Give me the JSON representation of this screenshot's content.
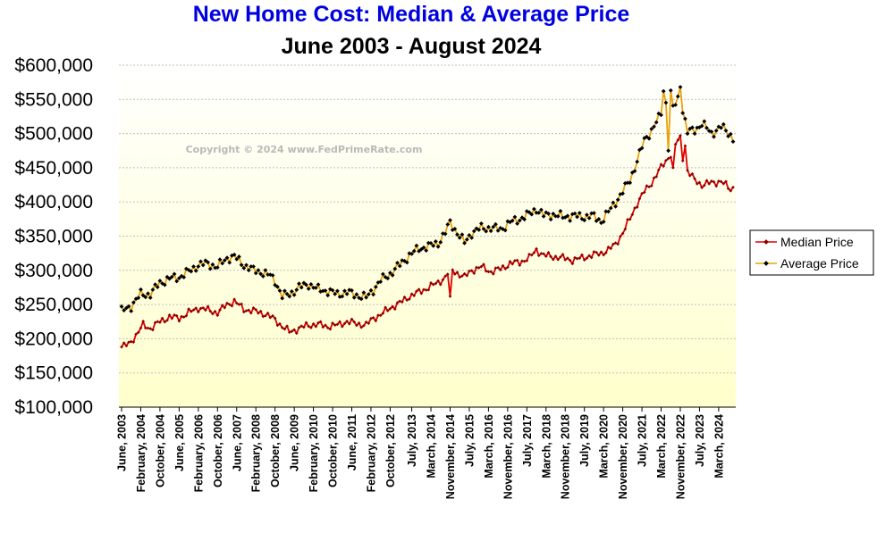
{
  "chart_data": {
    "type": "line",
    "title": "New Home Cost: Median & Average Price",
    "subtitle": "June 2003  -  August 2024",
    "watermark": "Copyright © 2024 www.FedPrimeRate.com",
    "start": "2003-06",
    "ylim": [
      100000,
      600000
    ],
    "yticks": [
      {
        "value": 100000,
        "label": "$100,000"
      },
      {
        "value": 150000,
        "label": "$150,000"
      },
      {
        "value": 200000,
        "label": "$200,000"
      },
      {
        "value": 250000,
        "label": "$250,000"
      },
      {
        "value": 300000,
        "label": "$300,000"
      },
      {
        "value": 350000,
        "label": "$350,000"
      },
      {
        "value": 400000,
        "label": "$400,000"
      },
      {
        "value": 450000,
        "label": "$450,000"
      },
      {
        "value": 500000,
        "label": "$500,000"
      },
      {
        "value": 550000,
        "label": "$550,000"
      },
      {
        "value": 600000,
        "label": "$600,000"
      }
    ],
    "xticks": [
      {
        "index": 0,
        "label": "June, 2003"
      },
      {
        "index": 8,
        "label": "February, 2004"
      },
      {
        "index": 16,
        "label": "October, 2004"
      },
      {
        "index": 24,
        "label": "June, 2005"
      },
      {
        "index": 32,
        "label": "February, 2006"
      },
      {
        "index": 40,
        "label": "October, 2006"
      },
      {
        "index": 48,
        "label": "June, 2007"
      },
      {
        "index": 56,
        "label": "February, 2008"
      },
      {
        "index": 64,
        "label": "October, 2008"
      },
      {
        "index": 72,
        "label": "June, 2009"
      },
      {
        "index": 80,
        "label": "February, 2010"
      },
      {
        "index": 88,
        "label": "October, 2010"
      },
      {
        "index": 96,
        "label": "June, 2011"
      },
      {
        "index": 104,
        "label": "February, 2012"
      },
      {
        "index": 112,
        "label": "October, 2012"
      },
      {
        "index": 121,
        "label": "July, 2013"
      },
      {
        "index": 129,
        "label": "March, 2014"
      },
      {
        "index": 137,
        "label": "November, 2014"
      },
      {
        "index": 145,
        "label": "July, 2015"
      },
      {
        "index": 153,
        "label": "March, 2016"
      },
      {
        "index": 161,
        "label": "November, 2016"
      },
      {
        "index": 169,
        "label": "July, 2017"
      },
      {
        "index": 177,
        "label": "March, 2018"
      },
      {
        "index": 185,
        "label": "November, 2018"
      },
      {
        "index": 193,
        "label": "July, 2019"
      },
      {
        "index": 201,
        "label": "March, 2020"
      },
      {
        "index": 209,
        "label": "November, 2020"
      },
      {
        "index": 217,
        "label": "July, 2021"
      },
      {
        "index": 225,
        "label": "March, 2022"
      },
      {
        "index": 233,
        "label": "November, 2022"
      },
      {
        "index": 241,
        "label": "July, 2023"
      },
      {
        "index": 249,
        "label": "March, 2024"
      }
    ],
    "series": [
      {
        "name": "Median Price",
        "color": "#e00000",
        "anchors": [
          [
            0,
            188000
          ],
          [
            3,
            192000
          ],
          [
            6,
            205000
          ],
          [
            9,
            220000
          ],
          [
            12,
            215000
          ],
          [
            16,
            225000
          ],
          [
            20,
            232000
          ],
          [
            24,
            230000
          ],
          [
            28,
            238000
          ],
          [
            32,
            245000
          ],
          [
            36,
            242000
          ],
          [
            40,
            238000
          ],
          [
            44,
            250000
          ],
          [
            47,
            255000
          ],
          [
            51,
            243000
          ],
          [
            56,
            240000
          ],
          [
            60,
            236000
          ],
          [
            64,
            228000
          ],
          [
            67,
            218000
          ],
          [
            70,
            210000
          ],
          [
            74,
            215000
          ],
          [
            78,
            220000
          ],
          [
            82,
            221000
          ],
          [
            86,
            218000
          ],
          [
            90,
            220000
          ],
          [
            94,
            225000
          ],
          [
            98,
            222000
          ],
          [
            102,
            220000
          ],
          [
            105,
            230000
          ],
          [
            108,
            235000
          ],
          [
            112,
            245000
          ],
          [
            116,
            252000
          ],
          [
            120,
            262000
          ],
          [
            124,
            268000
          ],
          [
            128,
            275000
          ],
          [
            132,
            282000
          ],
          [
            135,
            290000
          ],
          [
            137,
            302000
          ],
          [
            140,
            296000
          ],
          [
            143,
            290000
          ],
          [
            146,
            300000
          ],
          [
            150,
            305000
          ],
          [
            154,
            298000
          ],
          [
            158,
            302000
          ],
          [
            162,
            310000
          ],
          [
            166,
            312000
          ],
          [
            170,
            318000
          ],
          [
            173,
            330000
          ],
          [
            176,
            322000
          ],
          [
            180,
            320000
          ],
          [
            184,
            318000
          ],
          [
            188,
            315000
          ],
          [
            192,
            318000
          ],
          [
            196,
            322000
          ],
          [
            200,
            325000
          ],
          [
            203,
            330000
          ],
          [
            206,
            338000
          ],
          [
            209,
            355000
          ],
          [
            212,
            375000
          ],
          [
            215,
            398000
          ],
          [
            218,
            415000
          ],
          [
            221,
            428000
          ],
          [
            224,
            445000
          ],
          [
            227,
            460000
          ],
          [
            229,
            470000
          ],
          [
            232,
            490000
          ],
          [
            234,
            465000
          ],
          [
            236,
            445000
          ],
          [
            239,
            432000
          ],
          [
            242,
            425000
          ],
          [
            246,
            428000
          ],
          [
            250,
            430000
          ],
          [
            254,
            418000
          ],
          [
            255,
            421000
          ]
        ],
        "spikes": [
          [
            137,
            262000
          ],
          [
            230,
            450000
          ],
          [
            233,
            497000
          ],
          [
            235,
            482000
          ]
        ]
      },
      {
        "name": "Average Price",
        "color": "#e9a20a",
        "anchors": [
          [
            0,
            240000
          ],
          [
            4,
            248000
          ],
          [
            8,
            265000
          ],
          [
            12,
            265000
          ],
          [
            16,
            282000
          ],
          [
            20,
            288000
          ],
          [
            24,
            290000
          ],
          [
            28,
            298000
          ],
          [
            32,
            308000
          ],
          [
            36,
            310000
          ],
          [
            40,
            305000
          ],
          [
            44,
            318000
          ],
          [
            47,
            320000
          ],
          [
            51,
            308000
          ],
          [
            55,
            300000
          ],
          [
            58,
            298000
          ],
          [
            62,
            292000
          ],
          [
            64,
            285000
          ],
          [
            67,
            262000
          ],
          [
            70,
            265000
          ],
          [
            74,
            275000
          ],
          [
            78,
            280000
          ],
          [
            82,
            272000
          ],
          [
            86,
            270000
          ],
          [
            90,
            265000
          ],
          [
            94,
            268000
          ],
          [
            98,
            264000
          ],
          [
            102,
            260000
          ],
          [
            105,
            272000
          ],
          [
            108,
            285000
          ],
          [
            112,
            295000
          ],
          [
            116,
            308000
          ],
          [
            120,
            322000
          ],
          [
            124,
            332000
          ],
          [
            128,
            335000
          ],
          [
            132,
            340000
          ],
          [
            135,
            355000
          ],
          [
            137,
            370000
          ],
          [
            140,
            355000
          ],
          [
            143,
            340000
          ],
          [
            146,
            355000
          ],
          [
            150,
            362000
          ],
          [
            154,
            362000
          ],
          [
            158,
            360000
          ],
          [
            162,
            370000
          ],
          [
            166,
            375000
          ],
          [
            170,
            382000
          ],
          [
            173,
            390000
          ],
          [
            176,
            380000
          ],
          [
            180,
            382000
          ],
          [
            184,
            378000
          ],
          [
            188,
            380000
          ],
          [
            192,
            378000
          ],
          [
            196,
            380000
          ],
          [
            200,
            372000
          ],
          [
            203,
            385000
          ],
          [
            206,
            400000
          ],
          [
            209,
            415000
          ],
          [
            212,
            432000
          ],
          [
            215,
            460000
          ],
          [
            218,
            490000
          ],
          [
            221,
            505000
          ],
          [
            224,
            522000
          ],
          [
            227,
            545000
          ],
          [
            229,
            530000
          ],
          [
            232,
            550000
          ],
          [
            234,
            535000
          ],
          [
            236,
            502000
          ],
          [
            239,
            505000
          ],
          [
            242,
            515000
          ],
          [
            246,
            500000
          ],
          [
            250,
            510000
          ],
          [
            254,
            498000
          ],
          [
            255,
            493000
          ]
        ],
        "spikes": [
          [
            226,
            562000
          ],
          [
            228,
            475000
          ],
          [
            229,
            563000
          ],
          [
            233,
            568000
          ]
        ]
      }
    ],
    "legend": {
      "position": "right",
      "entries": [
        "Median Price",
        "Average Price"
      ]
    }
  },
  "colors": {
    "title": "#0000e0",
    "subtitle": "#000000",
    "plot_top": "#ffffff",
    "plot_bottom": "#ffffcc",
    "gridline": "#bfbfbf"
  }
}
